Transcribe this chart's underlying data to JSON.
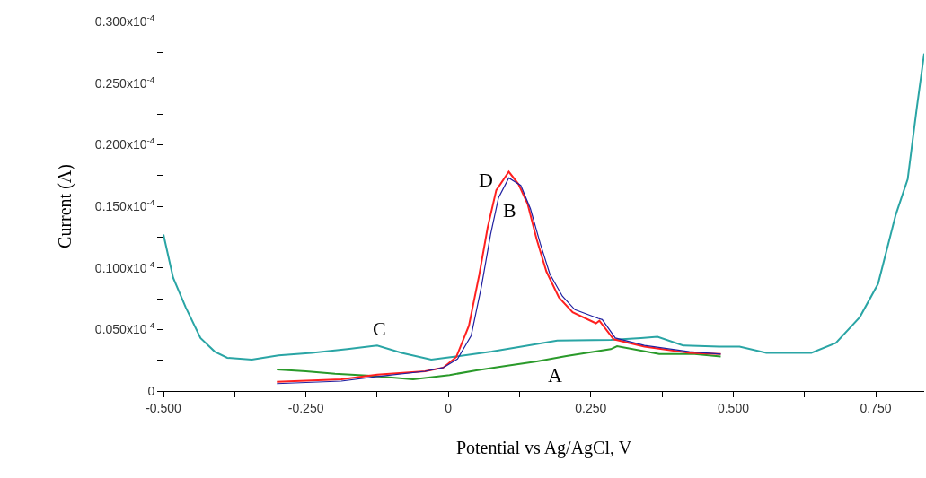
{
  "chart_data": {
    "type": "line",
    "xlabel": "Potential vs Ag/AgCl, V",
    "ylabel": "Current (A)",
    "xlim": [
      -0.5,
      0.835
    ],
    "ylim": [
      0,
      3e-05
    ],
    "xticks": [
      {
        "value": -0.5,
        "label": "-0.500"
      },
      {
        "value": -0.375,
        "label": null
      },
      {
        "value": -0.25,
        "label": "-0.250"
      },
      {
        "value": -0.125,
        "label": null
      },
      0,
      {
        "value": 0.125,
        "label": null
      },
      {
        "value": 0.25,
        "label": "0.250"
      },
      {
        "value": 0.375,
        "label": null
      },
      {
        "value": 0.5,
        "label": "0.500"
      },
      {
        "value": 0.625,
        "label": null
      },
      {
        "value": 0.75,
        "label": "0.750"
      }
    ],
    "yticks": [
      0,
      {
        "value": 2.5e-06,
        "label": null
      },
      {
        "value": 5e-06,
        "label": "0.050x10$^{-4}$"
      },
      {
        "value": 7.5e-06,
        "label": null
      },
      {
        "value": 1e-05,
        "label": "0.100x10$^{-4}$"
      },
      {
        "value": 1.25e-05,
        "label": null
      },
      {
        "value": 1.5e-05,
        "label": "0.150x10$^{-4}$"
      },
      {
        "value": 1.75e-05,
        "label": null
      },
      {
        "value": 2e-05,
        "label": "0.200x10$^{-4}$"
      },
      {
        "value": 2.25e-05,
        "label": null
      },
      {
        "value": 2.5e-05,
        "label": "0.250x10$^{-4}$"
      },
      {
        "value": 2.75e-05,
        "label": null
      },
      {
        "value": 3e-05,
        "label": "0.300x10$^{-4}$"
      }
    ],
    "grid": false,
    "marker": "none",
    "line_style": "solid",
    "series": [
      {
        "color": "#2aa5a5",
        "x": [
          -0.5,
          -0.483,
          -0.461,
          -0.435,
          -0.41,
          -0.388,
          -0.345,
          -0.298,
          -0.24,
          -0.177,
          -0.125,
          -0.082,
          -0.03,
          0.013,
          0.076,
          0.128,
          0.191,
          0.285,
          0.338,
          0.367,
          0.412,
          0.475,
          0.511,
          0.558,
          0.637,
          0.68,
          0.722,
          0.754,
          0.785,
          0.806,
          0.822,
          0.835
        ],
        "values": [
          1.27e-05,
          9.2e-06,
          6.8e-06,
          4.3e-06,
          3.2e-06,
          2.7e-06,
          2.55e-06,
          2.9e-06,
          3.1e-06,
          3.4e-06,
          3.7e-06,
          3.1e-06,
          2.55e-06,
          2.8e-06,
          3.2e-06,
          3.6e-06,
          4.1e-06,
          4.15e-06,
          4.3e-06,
          4.4e-06,
          3.7e-06,
          3.6e-06,
          3.6e-06,
          3.1e-06,
          3.1e-06,
          3.9e-06,
          6e-06,
          8.7e-06,
          1.43e-05,
          1.72e-05,
          2.3e-05,
          2.74e-05
        ]
      },
      {
        "color": "#2a9a2a",
        "x": [
          -0.301,
          -0.25,
          -0.199,
          -0.136,
          -0.062,
          0.002,
          0.049,
          0.101,
          0.155,
          0.207,
          0.285,
          0.296,
          0.37,
          0.432,
          0.478
        ],
        "values": [
          1.75e-06,
          1.6e-06,
          1.4e-06,
          1.24e-06,
          9.5e-07,
          1.3e-06,
          1.67e-06,
          2.04e-06,
          2.4e-06,
          2.84e-06,
          3.4e-06,
          3.64e-06,
          3e-06,
          3e-06,
          2.8e-06
        ]
      },
      {
        "color": "#ff2020",
        "x": [
          -0.301,
          -0.188,
          -0.125,
          -0.041,
          -0.009,
          0.014,
          0.036,
          0.054,
          0.069,
          0.084,
          0.106,
          0.123,
          0.139,
          0.155,
          0.172,
          0.194,
          0.218,
          0.259,
          0.265,
          0.29,
          0.344,
          0.423,
          0.478
        ],
        "values": [
          7.5e-07,
          9.5e-07,
          1.32e-06,
          1.6e-06,
          1.9e-06,
          2.77e-06,
          5.3e-06,
          9.4e-06,
          1.33e-05,
          1.63e-05,
          1.78e-05,
          1.68e-05,
          1.52e-05,
          1.23e-05,
          9.7e-06,
          7.6e-06,
          6.4e-06,
          5.5e-06,
          5.7e-06,
          4.2e-06,
          3.6e-06,
          3.1e-06,
          3e-06
        ]
      },
      {
        "color": "#2020a0",
        "x": [
          -0.301,
          -0.188,
          -0.125,
          -0.041,
          -0.009,
          0.016,
          0.04,
          0.058,
          0.074,
          0.088,
          0.106,
          0.127,
          0.144,
          0.161,
          0.178,
          0.2,
          0.222,
          0.263,
          0.27,
          0.293,
          0.344,
          0.423,
          0.478
        ],
        "values": [
          6e-07,
          8e-07,
          1.18e-06,
          1.6e-06,
          1.9e-06,
          2.6e-06,
          4.5e-06,
          8.5e-06,
          1.27e-05,
          1.57e-05,
          1.73e-05,
          1.67e-05,
          1.48e-05,
          1.2e-05,
          9.5e-06,
          7.7e-06,
          6.6e-06,
          5.9e-06,
          5.8e-06,
          4.3e-06,
          3.7e-06,
          3.2e-06,
          3e-06
        ]
      }
    ],
    "annotations": [
      {
        "text": "A",
        "x": 0.155,
        "y": 2.4e-06
      },
      {
        "text": "B",
        "x": 0.127,
        "y": 1.67e-05
      },
      {
        "text": "C",
        "x": -0.125,
        "y": 3.7e-06
      },
      {
        "text": "D",
        "x": 0.084,
        "y": 1.63e-05
      }
    ]
  }
}
